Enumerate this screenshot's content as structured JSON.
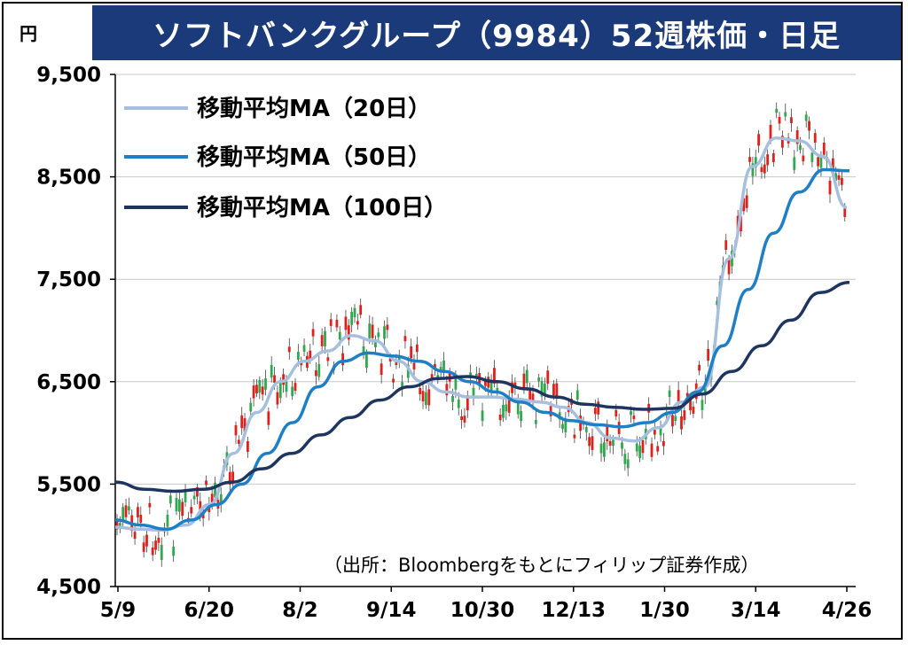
{
  "header": {
    "title": "ソフトバンクグループ（9984）52週株価・日足",
    "unit": "円"
  },
  "source_note": "（出所：Bloombergをもとにフィリップ証券作成）",
  "chart_data": {
    "type": "line",
    "title": "ソフトバンクグループ（9984）52週株価・日足",
    "ylabel": "円",
    "ylim": [
      4500,
      9500
    ],
    "yticks": [
      "9,500",
      "8,500",
      "7,500",
      "6,500",
      "5,500",
      "4,500"
    ],
    "ytick_values": [
      9500,
      8500,
      7500,
      6500,
      5500,
      4500
    ],
    "xticks": [
      "5/9",
      "6/20",
      "8/2",
      "9/14",
      "10/30",
      "12/13",
      "1/30",
      "3/14",
      "4/26"
    ],
    "grid": true,
    "legend_position": "top-left",
    "colors": {
      "ma20": "#a6bfdf",
      "ma50": "#1f7fc4",
      "ma100": "#1e3560",
      "up": "#2fa84f",
      "down": "#e0201b",
      "grid": "#c8c8c8",
      "title_bg": "#1a3a7a"
    },
    "series": [
      {
        "name": "移動平均MA（20日）",
        "color": "#a6bfdf",
        "values": [
          5080,
          5060,
          5050,
          5100,
          5300,
          5800,
          6200,
          6500,
          6700,
          6800,
          6950,
          6900,
          6700,
          6500,
          6400,
          6350,
          6350,
          6330,
          6300,
          6250,
          6100,
          5950,
          5920,
          6050,
          6300,
          6450,
          7700,
          8600,
          8880,
          8850,
          8700,
          8200
        ]
      },
      {
        "name": "移動平均MA（50日）",
        "color": "#1f7fc4",
        "values": [
          5150,
          5100,
          5060,
          5150,
          5300,
          5500,
          5800,
          6100,
          6450,
          6700,
          6780,
          6750,
          6700,
          6600,
          6500,
          6400,
          6300,
          6200,
          6120,
          6080,
          6060,
          6100,
          6200,
          6400,
          6850,
          7400,
          7950,
          8350,
          8570,
          8560
        ]
      },
      {
        "name": "移動平均MA（100日）",
        "color": "#1e3560",
        "values": [
          5520,
          5450,
          5430,
          5450,
          5520,
          5650,
          5800,
          5980,
          6150,
          6320,
          6450,
          6530,
          6550,
          6500,
          6430,
          6350,
          6280,
          6250,
          6230,
          6240,
          6380,
          6600,
          6850,
          7100,
          7370,
          7470
        ]
      }
    ]
  }
}
